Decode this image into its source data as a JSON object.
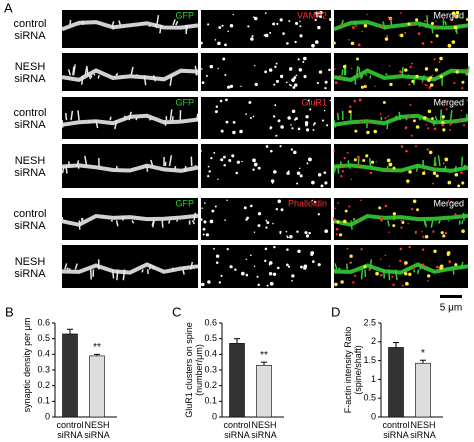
{
  "panel_a": {
    "label": "A",
    "groups": [
      {
        "channels": [
          "GFP",
          "VAMP2",
          "Merged"
        ],
        "rows": [
          "control siRNA",
          "NESH siRNA"
        ]
      },
      {
        "channels": [
          "GFP",
          "GluR1",
          "Merged"
        ],
        "rows": [
          "control siRNA",
          "NESH siRNA"
        ]
      },
      {
        "channels": [
          "GFP",
          "Phalloidin",
          "Merged"
        ],
        "rows": [
          "control siRNA",
          "NESH siRNA"
        ]
      }
    ],
    "scale_bar": "5 μm"
  },
  "chart_data": [
    {
      "type": "bar",
      "panel": "B",
      "y_label": "synaptic density per μm",
      "categories": [
        "control siRNA",
        "NESH siRNA"
      ],
      "values": [
        0.53,
        0.39
      ],
      "errors": [
        0.03,
        0.01
      ],
      "colors": [
        "#333333",
        "#dddddd"
      ],
      "annotation": "**",
      "ylim": [
        0,
        0.6
      ],
      "yticks": [
        0,
        0.1,
        0.2,
        0.3,
        0.4,
        0.5,
        0.6
      ]
    },
    {
      "type": "bar",
      "panel": "C",
      "y_label": "GluR1 clusters on spine (number/μm)",
      "categories": [
        "control siRNA",
        "NESH siRNA"
      ],
      "values": [
        0.47,
        0.33
      ],
      "errors": [
        0.03,
        0.02
      ],
      "colors": [
        "#333333",
        "#dddddd"
      ],
      "annotation": "**",
      "ylim": [
        0,
        0.6
      ],
      "yticks": [
        0,
        0.1,
        0.2,
        0.3,
        0.4,
        0.5,
        0.6
      ]
    },
    {
      "type": "bar",
      "panel": "D",
      "y_label": "F-actin intensity Ratio (spine/shaft)",
      "categories": [
        "control siRNA",
        "NESH siRNA"
      ],
      "values": [
        1.85,
        1.43
      ],
      "errors": [
        0.13,
        0.08
      ],
      "colors": [
        "#333333",
        "#dddddd"
      ],
      "annotation": "*",
      "ylim": [
        0,
        2.5
      ],
      "yticks": [
        0,
        0.5,
        1,
        1.5,
        2,
        2.5
      ]
    }
  ]
}
